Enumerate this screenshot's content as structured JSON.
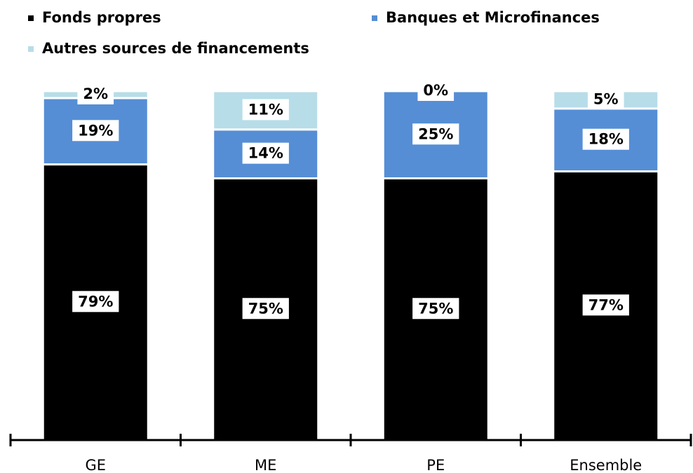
{
  "chart_data": {
    "type": "stacked_bar",
    "categories": [
      "GE",
      "ME",
      "PE",
      "Ensemble"
    ],
    "series": [
      {
        "name": "Fonds propres",
        "color": "#000000",
        "values": [
          79,
          75,
          75,
          77
        ],
        "value_labels": [
          "79%",
          "75%",
          "75%",
          "77%"
        ]
      },
      {
        "name": "Banques et Microfinances",
        "color": "#558ed5",
        "values": [
          19,
          14,
          25,
          18
        ],
        "value_labels": [
          "19%",
          "14%",
          "25%",
          "18%"
        ]
      },
      {
        "name": "Autres sources de financements",
        "color": "#b7dde8",
        "values": [
          2,
          11,
          0,
          5
        ],
        "value_labels": [
          "2%",
          "11%",
          "0%",
          "5%"
        ]
      }
    ],
    "ylim": [
      0,
      100
    ],
    "legend": "top"
  }
}
